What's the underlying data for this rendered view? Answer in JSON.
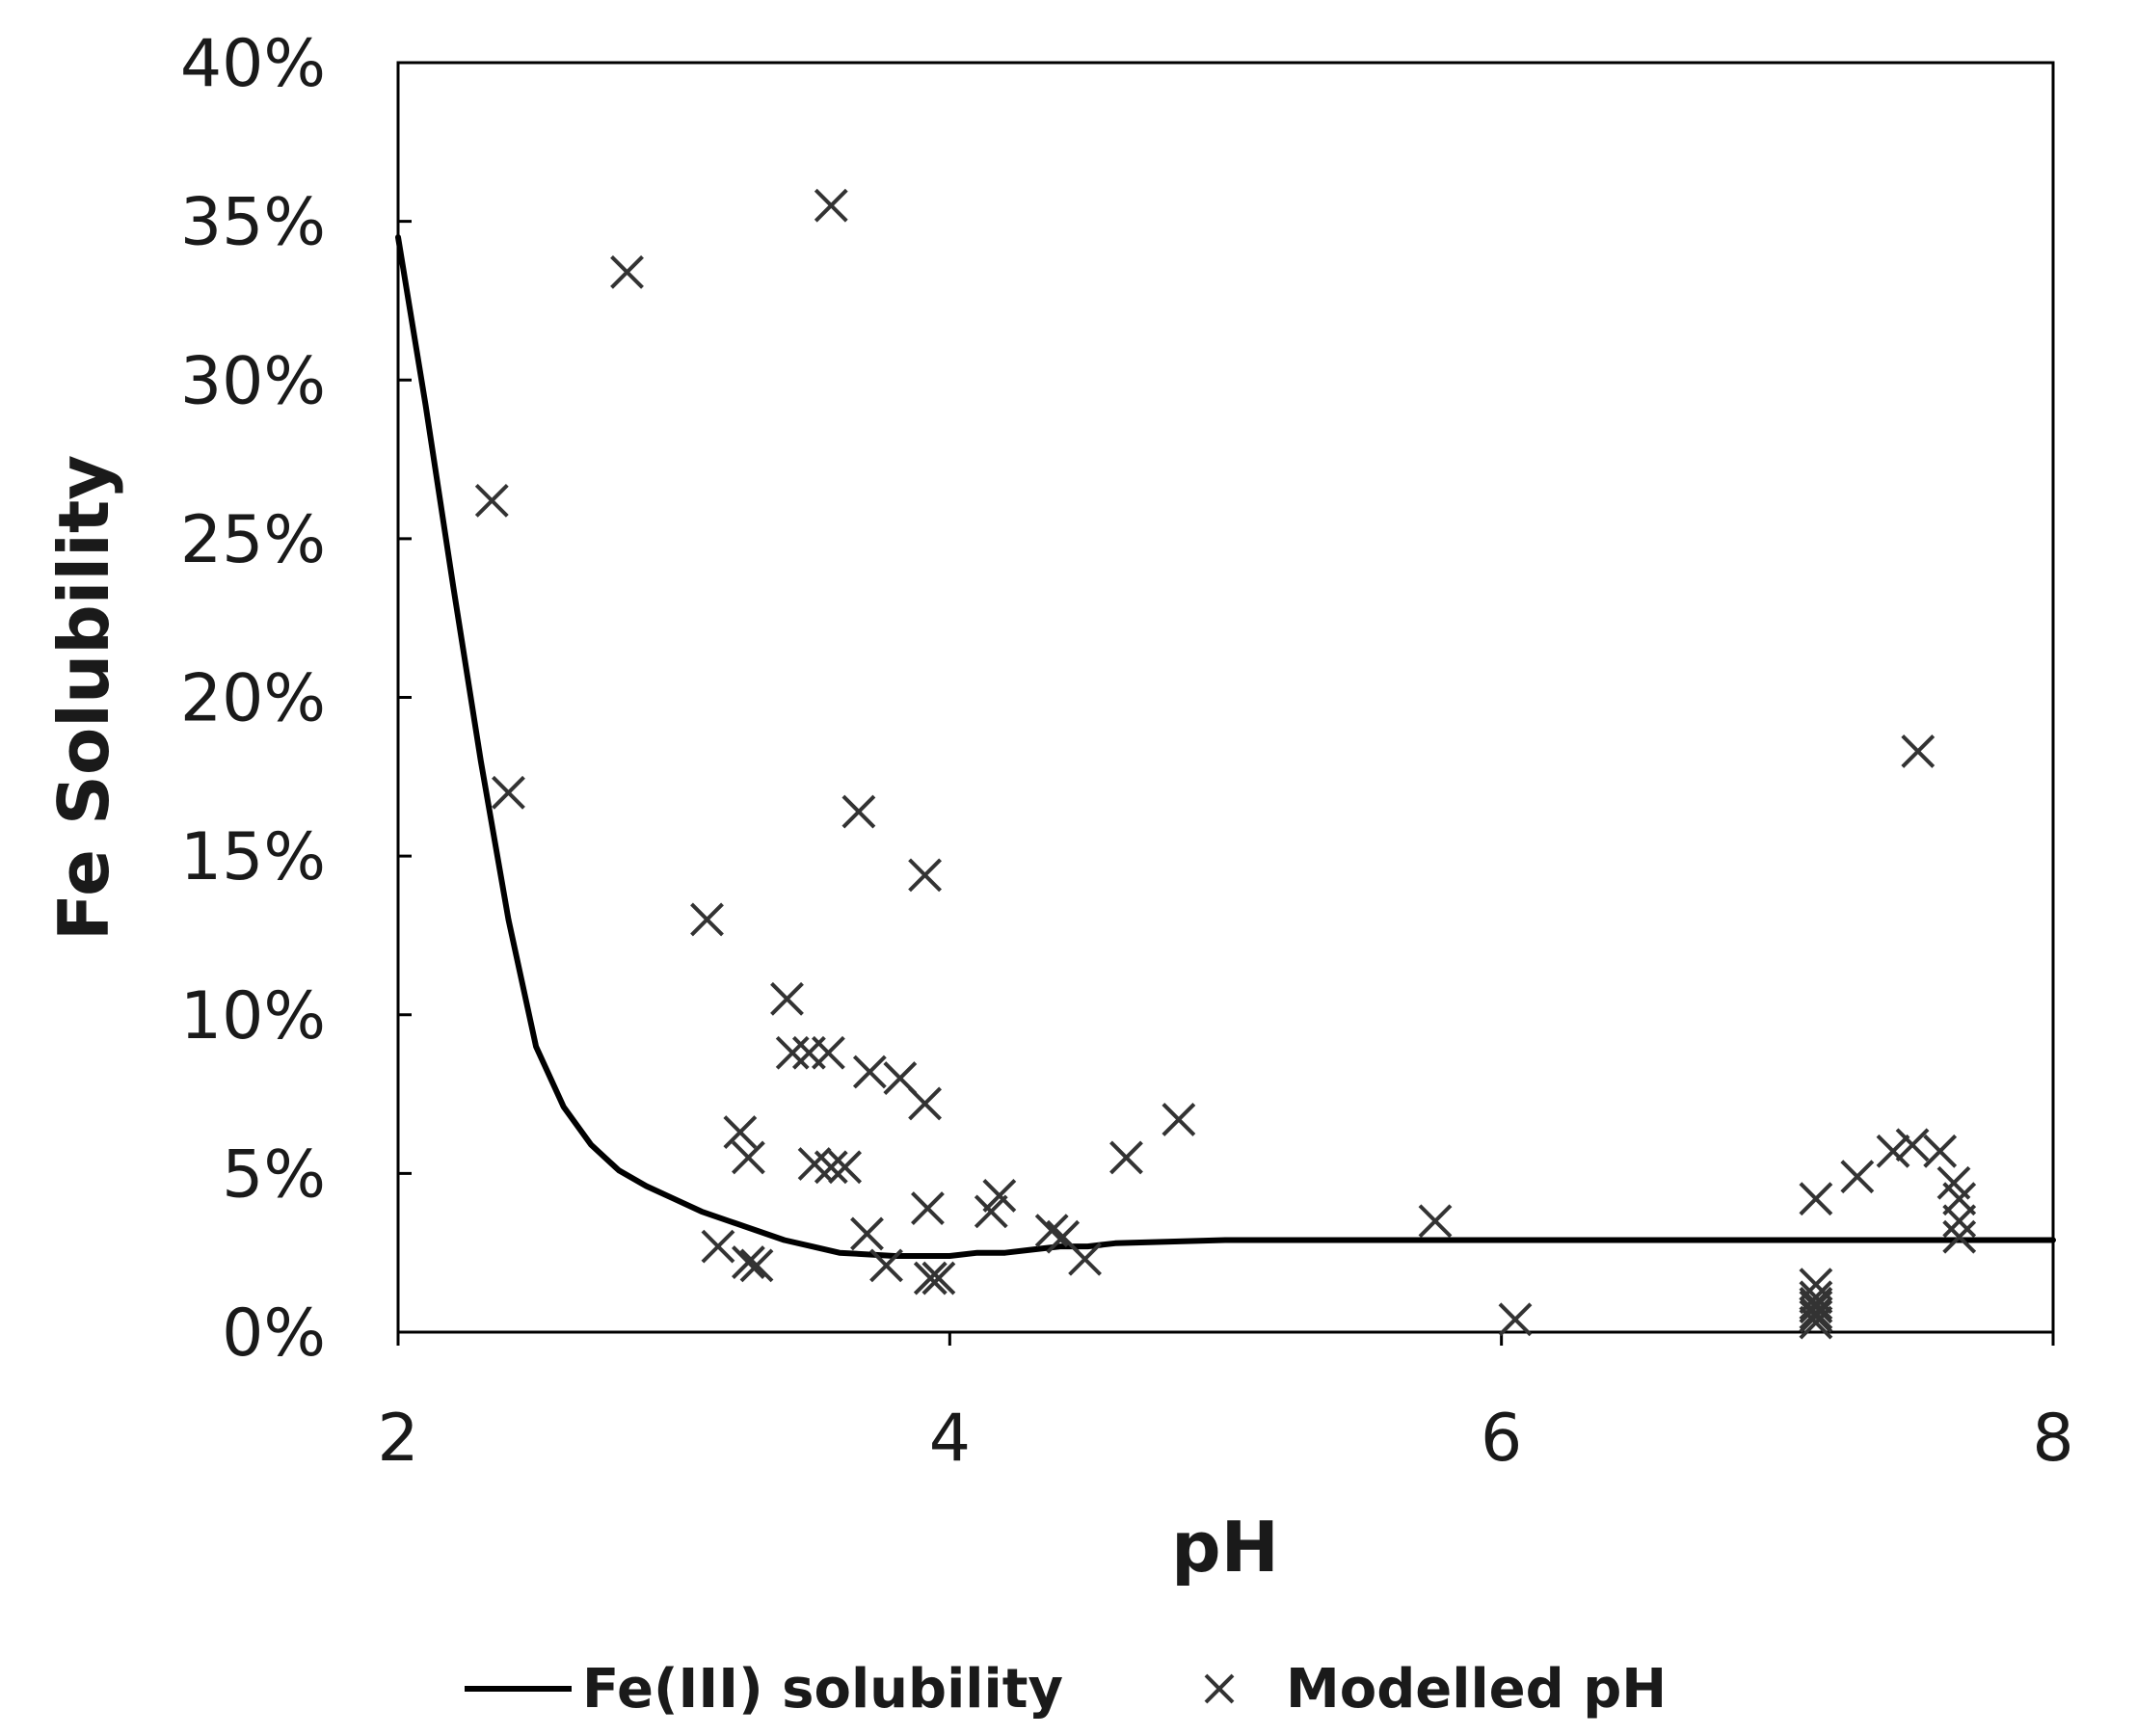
{
  "chart_data": {
    "type": "scatter",
    "title": "",
    "xlabel": "pH",
    "ylabel": "Fe Solubility",
    "xlim": [
      2,
      8
    ],
    "ylim": [
      0,
      0.4
    ],
    "x_ticks": [
      2,
      4,
      6,
      8
    ],
    "x_tick_labels": [
      "2",
      "4",
      "6",
      "8"
    ],
    "y_ticks": [
      0,
      0.05,
      0.1,
      0.15,
      0.2,
      0.25,
      0.3,
      0.35,
      0.4
    ],
    "y_tick_labels": [
      "0%",
      "5%",
      "10%",
      "15%",
      "20%",
      "25%",
      "30%",
      "35%",
      "40%"
    ],
    "grid": false,
    "legend_position": "bottom",
    "series": [
      {
        "name": "Fe(III) solubility",
        "kind": "line",
        "color": "#000000",
        "x": [
          2.0,
          2.1,
          2.2,
          2.3,
          2.4,
          2.5,
          2.6,
          2.7,
          2.8,
          2.9,
          3.0,
          3.1,
          3.2,
          3.3,
          3.4,
          3.5,
          3.6,
          3.8,
          3.9,
          4.0,
          4.1,
          4.2,
          4.3,
          4.4,
          4.5,
          4.6,
          5.0,
          5.5,
          6.0,
          6.5,
          7.0,
          7.5,
          8.0
        ],
        "y": [
          0.345,
          0.292,
          0.235,
          0.18,
          0.13,
          0.09,
          0.071,
          0.059,
          0.051,
          0.046,
          0.042,
          0.038,
          0.035,
          0.032,
          0.029,
          0.027,
          0.025,
          0.024,
          0.024,
          0.024,
          0.025,
          0.025,
          0.026,
          0.027,
          0.027,
          0.028,
          0.029,
          0.029,
          0.029,
          0.029,
          0.029,
          0.029,
          0.029
        ]
      },
      {
        "name": "Modelled pH",
        "kind": "scatter",
        "marker": "x",
        "color": "#333333",
        "x": [
          2.34,
          2.4,
          2.83,
          3.57,
          3.12,
          3.16,
          3.24,
          3.27,
          3.27,
          3.3,
          3.41,
          3.43,
          3.49,
          3.51,
          3.57,
          3.56,
          3.62,
          3.67,
          3.7,
          3.71,
          3.77,
          3.82,
          3.91,
          3.91,
          3.92,
          3.93,
          3.96,
          4.15,
          4.18,
          4.37,
          4.41,
          4.49,
          4.64,
          4.83,
          5.76,
          6.05,
          7.14,
          7.14,
          7.14,
          7.14,
          7.14,
          7.14,
          7.14,
          7.14,
          7.29,
          7.42,
          7.49,
          7.51,
          7.59,
          7.64,
          7.66,
          7.66,
          7.66
        ],
        "y": [
          0.262,
          0.17,
          0.334,
          0.355,
          0.13,
          0.027,
          0.063,
          0.022,
          0.055,
          0.021,
          0.105,
          0.088,
          0.088,
          0.053,
          0.052,
          0.088,
          0.052,
          0.164,
          0.031,
          0.082,
          0.021,
          0.08,
          0.144,
          0.072,
          0.039,
          0.017,
          0.017,
          0.038,
          0.043,
          0.032,
          0.03,
          0.023,
          0.055,
          0.067,
          0.035,
          0.004,
          0.042,
          0.015,
          0.011,
          0.009,
          0.008,
          0.006,
          0.005,
          0.003,
          0.049,
          0.057,
          0.059,
          0.183,
          0.057,
          0.047,
          0.042,
          0.035,
          0.03
        ]
      }
    ]
  }
}
